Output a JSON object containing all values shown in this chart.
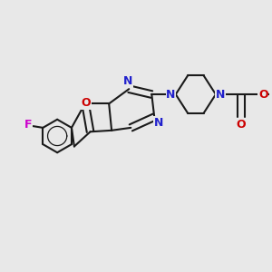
{
  "bg_color": "#e8e8e8",
  "bond_color": "#1a1a1a",
  "bond_width": 1.5,
  "N_color": "#2020cc",
  "O_color": "#cc0000",
  "F_color": "#cc00cc",
  "font_size_atom": 8.5,
  "fig_width": 3.0,
  "fig_height": 3.0,
  "dpi": 100,
  "xlim": [
    0,
    10
  ],
  "ylim": [
    0,
    10
  ]
}
